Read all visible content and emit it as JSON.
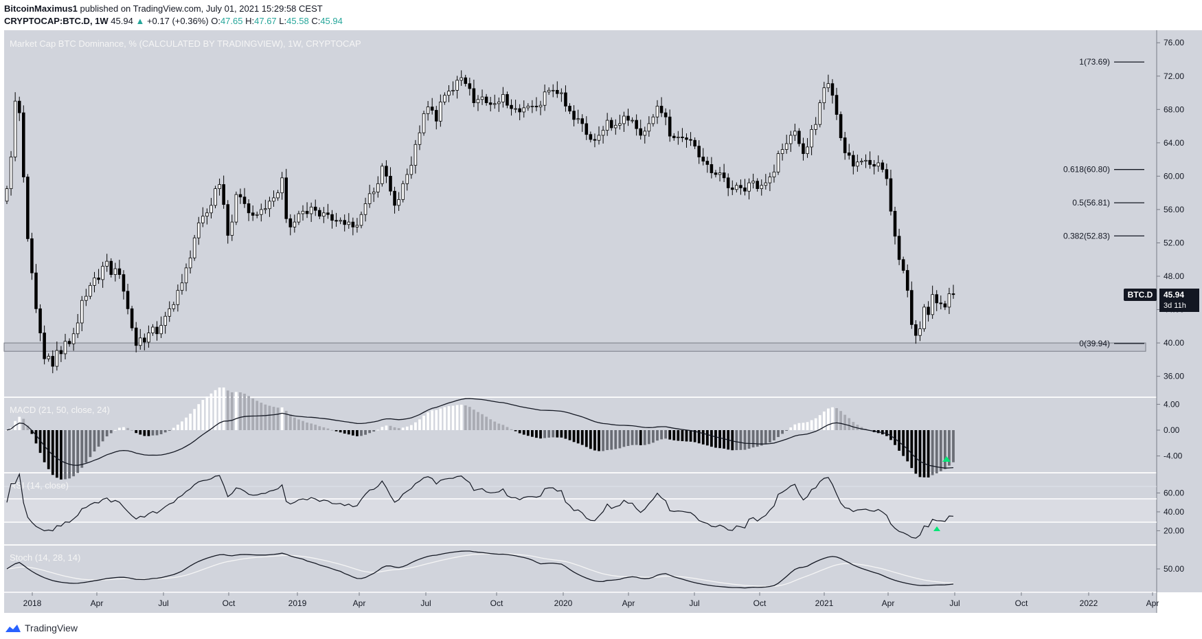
{
  "header": {
    "author": "BitcoinMaximus1",
    "published": "published on TradingView.com, July 01, 2021 15:29:58 CEST",
    "symbol": "CRYPTOCAP:BTC.D, 1W",
    "last": "45.94",
    "change": "+0.17 (+0.36%)",
    "o_label": "O:",
    "o": "47.65",
    "h_label": "H:",
    "h": "47.67",
    "l_label": "L:",
    "l": "45.58",
    "c_label": "C:",
    "c": "45.94"
  },
  "footer": {
    "brand": "TradingView"
  },
  "colors": {
    "background": "#d1d4dc",
    "candle_up": "#ffffff",
    "candle_down": "#000000",
    "accent": "#26a69a",
    "arrow": "#00e676"
  },
  "chart_data": {
    "type": "candlestick",
    "title": "Market Cap BTC Dominance, % (CALCULATED BY TRADINGVIEW), 1W, CRYPTOCAP",
    "x_ticks": [
      "2018",
      "Apr",
      "Jul",
      "Oct",
      "2019",
      "Apr",
      "Jul",
      "Oct",
      "2020",
      "Apr",
      "Jul",
      "Oct",
      "2021",
      "Apr",
      "Jul",
      "Oct",
      "2022",
      "Apr"
    ],
    "y_ticks": [
      "76.00",
      "72.00",
      "68.00",
      "64.00",
      "60.00",
      "56.00",
      "52.00",
      "48.00",
      "44.00",
      "40.00",
      "36.00"
    ],
    "ylim": [
      33.5,
      77.5
    ],
    "last_label": {
      "symbol": "BTC.D",
      "value": "45.94",
      "countdown": "3d 11h"
    },
    "fib_levels": [
      {
        "label": "1(73.69)",
        "value": 73.69
      },
      {
        "label": "0.618(60.80)",
        "value": 60.8
      },
      {
        "label": "0.5(56.81)",
        "value": 56.81
      },
      {
        "label": "0.382(52.83)",
        "value": 52.83
      },
      {
        "label": "0(39.94)",
        "value": 39.94
      }
    ],
    "support_zone": [
      39.0,
      40.0
    ],
    "closes": [
      58.5,
      62.3,
      69,
      67.6,
      59.9,
      52.5,
      48.4,
      44.1,
      41.2,
      38.1,
      38.4,
      37.2,
      39.1,
      38.7,
      40.2,
      39.9,
      41.1,
      42.4,
      45.1,
      45.6,
      46.9,
      47.8,
      47.6,
      49.2,
      49.8,
      48.2,
      48.9,
      48.2,
      46.2,
      44.1,
      41.8,
      39.7,
      40.6,
      40.1,
      41.2,
      41.9,
      41.1,
      42.1,
      43.2,
      44.1,
      44.6,
      46.3,
      47.2,
      49,
      50.2,
      52.6,
      54.4,
      55.2,
      55.6,
      56.5,
      58.5,
      59,
      56.6,
      52.9,
      54.5,
      57.8,
      57.5,
      56.7,
      55.6,
      55.3,
      55.4,
      56,
      56.1,
      57,
      57.4,
      58,
      59.8,
      54.9,
      53.9,
      54.5,
      55.5,
      55.8,
      55.5,
      56.3,
      55.9,
      55.2,
      55.6,
      55.4,
      54.7,
      54.6,
      54.7,
      54.2,
      54.5,
      53.9,
      54.1,
      55.4,
      56.7,
      57.9,
      58.1,
      59.1,
      61.2,
      60,
      58.2,
      56.5,
      57.2,
      59.1,
      60.2,
      61.3,
      63.8,
      65.2,
      67.5,
      68.3,
      67.9,
      66.6,
      68.9,
      69.7,
      70.2,
      70.3,
      71.5,
      71.8,
      71.1,
      70.5,
      68.8,
      69.2,
      69.5,
      68.8,
      68.6,
      68.7,
      68.9,
      69.8,
      68.5,
      68.1,
      68.1,
      67.7,
      68.2,
      68.4,
      68.4,
      68.3,
      68.5,
      70.1,
      70.3,
      70.3,
      69.9,
      70,
      68.4,
      67.8,
      66.8,
      66.9,
      66.3,
      65,
      64.4,
      64.3,
      64.9,
      65.5,
      66.7,
      65.8,
      66.1,
      66.3,
      67.2,
      66.7,
      66.7,
      65.7,
      64.9,
      65.4,
      66.3,
      67.1,
      68.4,
      67.6,
      67.1,
      64.8,
      64.6,
      64.7,
      64.6,
      64.4,
      64.3,
      63.6,
      62.3,
      61.8,
      61.4,
      60.4,
      60.2,
      60.4,
      59.8,
      58.6,
      58.4,
      58.9,
      58.6,
      58.2,
      59.2,
      59.4,
      58.5,
      58.9,
      59.2,
      59.9,
      60.5,
      62.7,
      63.2,
      63.9,
      64.9,
      65.4,
      63.9,
      62.7,
      63.5,
      65.6,
      66.2,
      68.8,
      70.6,
      71.1,
      69.7,
      67.4,
      64.6,
      62.8,
      62.5,
      61.2,
      61.7,
      61.8,
      61.9,
      61.4,
      61.2,
      61.6,
      60.8,
      59.7,
      55.8,
      52.8,
      50,
      48.7,
      46.3,
      42.2,
      40.9,
      41.7,
      44.3,
      43.4,
      45.8,
      44.8,
      44.7,
      44.3,
      45.9,
      45.8
    ]
  },
  "macd": {
    "label": "MACD (21, 50, close, 24)",
    "y_ticks": [
      "4.00",
      "0.00",
      "-4.00"
    ]
  },
  "rsi": {
    "label": "RSI (14, close)",
    "y_ticks": [
      "60.00",
      "40.00",
      "20.00"
    ]
  },
  "stoch": {
    "label": "Stoch (14, 28, 14)",
    "y_ticks": [
      "50.00"
    ]
  }
}
